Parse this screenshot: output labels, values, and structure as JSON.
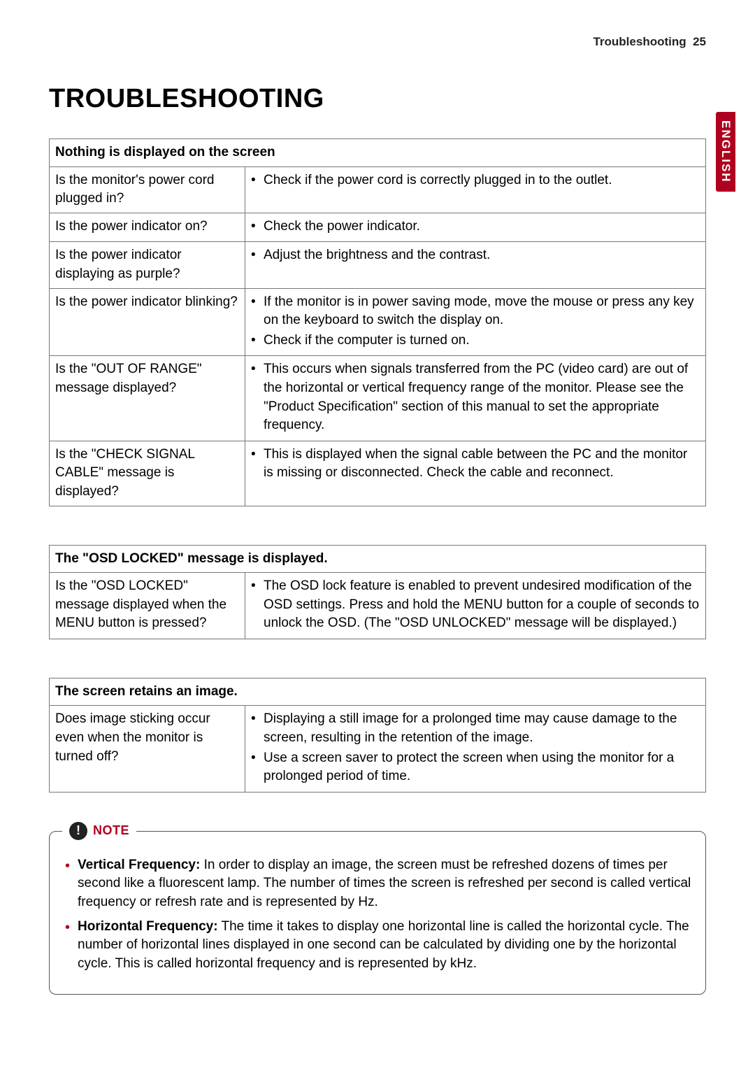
{
  "header": {
    "section": "Troubleshooting",
    "page": "25"
  },
  "side_tab": "ENGLISH",
  "title": "TROUBLESHOOTING",
  "tables": [
    {
      "header": "Nothing is displayed on the screen",
      "rows": [
        {
          "q": "Is the monitor's power cord plugged in?",
          "a": [
            "Check if the power cord is correctly plugged in to the outlet."
          ]
        },
        {
          "q": "Is the power indicator on?",
          "a": [
            "Check the power indicator."
          ]
        },
        {
          "q": "Is the power indicator displaying as purple?",
          "a": [
            "Adjust the brightness and the contrast."
          ]
        },
        {
          "q": "Is the power indicator blinking?",
          "a": [
            "If the monitor is in power saving mode, move the mouse or press any key on the keyboard to switch the display on.",
            "Check if the computer is turned on."
          ]
        },
        {
          "q": "Is the \"OUT OF RANGE\" message displayed?",
          "a": [
            "This occurs when signals transferred from the PC (video card) are out of the horizontal or vertical frequency range of the monitor. Please see the \"Product Specification\" section of this manual to set the appropriate frequency."
          ]
        },
        {
          "q": "Is the \"CHECK SIGNAL CABLE\" message is displayed?",
          "a": [
            "This is displayed when the signal cable between the PC and the monitor is missing or disconnected. Check the cable and reconnect."
          ]
        }
      ]
    },
    {
      "header": "The \"OSD LOCKED\" message is displayed.",
      "rows": [
        {
          "q": "Is the \"OSD LOCKED\" message displayed when the MENU button is pressed?",
          "a": [
            "The OSD lock feature is enabled to prevent undesired modification of the OSD settings. Press and hold the MENU button for a couple of seconds to unlock the OSD. (The \"OSD UNLOCKED\" message will be displayed.)"
          ]
        }
      ]
    },
    {
      "header": "The screen retains an image.",
      "rows": [
        {
          "q": "Does image sticking occur even when the monitor is turned off?",
          "a": [
            "Displaying a still image for a prolonged time may cause damage to the screen, resulting in the retention of the image.",
            "Use a screen saver to protect the screen when using the monitor for a prolonged period of time."
          ]
        }
      ]
    }
  ],
  "note": {
    "label": "NOTE",
    "items": [
      {
        "term": "Vertical Frequency:",
        "text": " In order to display an image, the screen must be refreshed dozens of times per second like a fluorescent lamp. The number of times the screen is refreshed per second is called vertical frequency or refresh rate and is represented by Hz."
      },
      {
        "term": "Horizontal Frequency:",
        "text": " The time it takes to display one horizontal line is called the horizontal cycle. The number of horizontal lines displayed in one second can be calculated by dividing one by the horizontal cycle. This is called horizontal frequency and is represented by kHz."
      }
    ]
  },
  "colors": {
    "accent": "#b00020",
    "border": "#777",
    "text": "#000",
    "bg": "#ffffff"
  }
}
